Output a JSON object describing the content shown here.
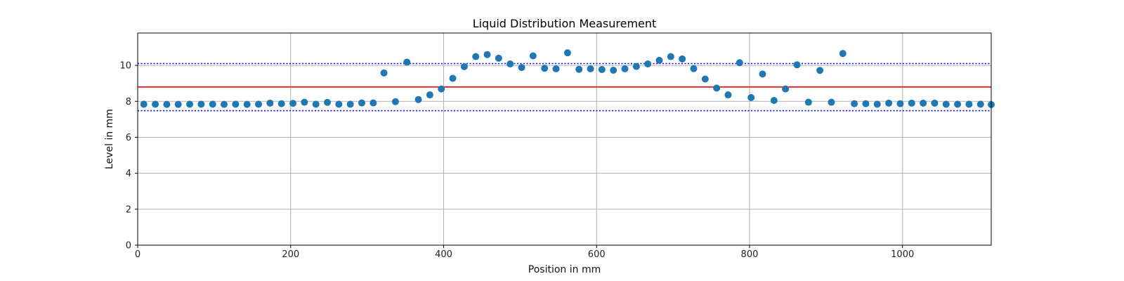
{
  "chart_data": {
    "type": "scatter",
    "title": "Liquid Distribution Measurement",
    "xlabel": "Position in mm",
    "ylabel": "Level in mm",
    "xlim": [
      0,
      1116
    ],
    "ylim": [
      0,
      11.8
    ],
    "xticks": [
      0,
      200,
      400,
      600,
      800,
      1000
    ],
    "yticks": [
      0,
      2,
      4,
      6,
      8,
      10
    ],
    "grid": true,
    "colors": {
      "points": "#1f77b4",
      "mean_line": "#ff0000",
      "limit_lines": "#0000ff",
      "grid": "#b0b0b0"
    },
    "reference_lines": [
      {
        "y": 8.8,
        "style": "solid",
        "color": "#ff0000"
      },
      {
        "y": 10.1,
        "style": "dotted",
        "color": "#0000ff"
      },
      {
        "y": 7.48,
        "style": "dotted",
        "color": "#0000ff"
      }
    ],
    "series": [
      {
        "points": [
          [
            8,
            7.84
          ],
          [
            23,
            7.84
          ],
          [
            38,
            7.83
          ],
          [
            53,
            7.83
          ],
          [
            68,
            7.84
          ],
          [
            83,
            7.84
          ],
          [
            98,
            7.84
          ],
          [
            113,
            7.83
          ],
          [
            128,
            7.84
          ],
          [
            143,
            7.83
          ],
          [
            158,
            7.84
          ],
          [
            173,
            7.9
          ],
          [
            188,
            7.87
          ],
          [
            203,
            7.89
          ],
          [
            218,
            7.95
          ],
          [
            233,
            7.84
          ],
          [
            248,
            7.94
          ],
          [
            263,
            7.84
          ],
          [
            278,
            7.84
          ],
          [
            293,
            7.91
          ],
          [
            308,
            7.91
          ],
          [
            322,
            9.58
          ],
          [
            337,
            7.98
          ],
          [
            352,
            10.18
          ],
          [
            367,
            8.1
          ],
          [
            382,
            8.36
          ],
          [
            397,
            8.69
          ],
          [
            412,
            9.28
          ],
          [
            427,
            9.93
          ],
          [
            442,
            10.49
          ],
          [
            457,
            10.6
          ],
          [
            472,
            10.4
          ],
          [
            487,
            10.08
          ],
          [
            502,
            9.88
          ],
          [
            517,
            10.53
          ],
          [
            532,
            9.84
          ],
          [
            547,
            9.81
          ],
          [
            562,
            10.7
          ],
          [
            577,
            9.78
          ],
          [
            592,
            9.81
          ],
          [
            607,
            9.77
          ],
          [
            622,
            9.73
          ],
          [
            637,
            9.81
          ],
          [
            652,
            9.94
          ],
          [
            667,
            10.08
          ],
          [
            682,
            10.28
          ],
          [
            697,
            10.49
          ],
          [
            712,
            10.36
          ],
          [
            727,
            9.82
          ],
          [
            742,
            9.24
          ],
          [
            757,
            8.74
          ],
          [
            772,
            8.36
          ],
          [
            787,
            10.15
          ],
          [
            802,
            8.21
          ],
          [
            817,
            9.52
          ],
          [
            832,
            8.05
          ],
          [
            847,
            8.69
          ],
          [
            862,
            10.03
          ],
          [
            877,
            7.95
          ],
          [
            892,
            9.72
          ],
          [
            907,
            7.95
          ],
          [
            922,
            10.66
          ],
          [
            937,
            7.87
          ],
          [
            952,
            7.87
          ],
          [
            967,
            7.84
          ],
          [
            982,
            7.9
          ],
          [
            997,
            7.87
          ],
          [
            1012,
            7.9
          ],
          [
            1027,
            7.9
          ],
          [
            1042,
            7.9
          ],
          [
            1057,
            7.84
          ],
          [
            1072,
            7.84
          ],
          [
            1087,
            7.84
          ],
          [
            1102,
            7.84
          ],
          [
            1116,
            7.82
          ]
        ]
      }
    ]
  }
}
